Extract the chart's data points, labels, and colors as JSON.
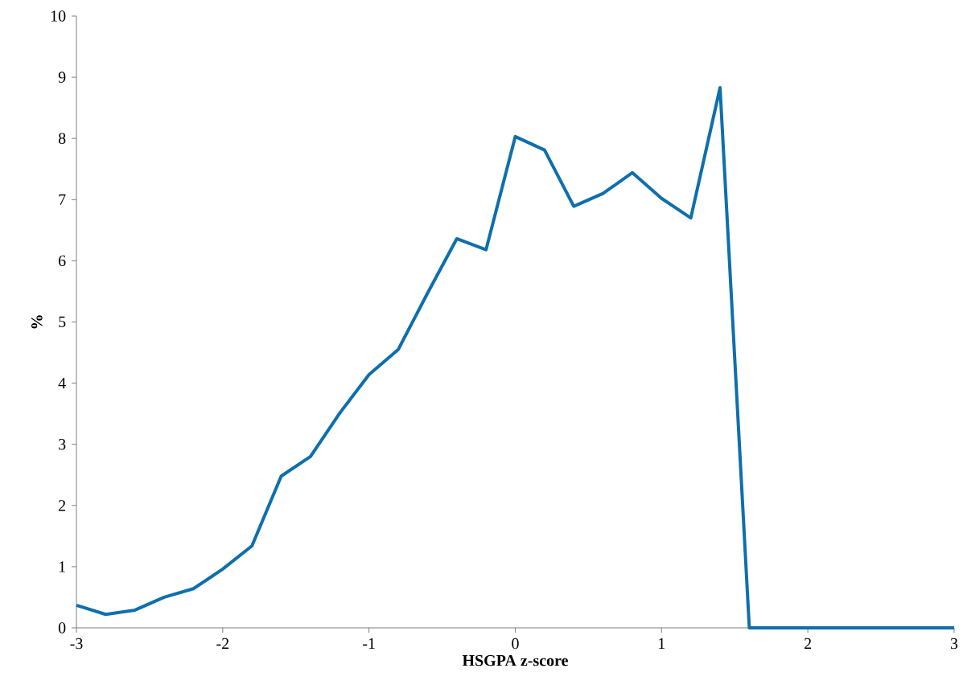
{
  "chart_data": {
    "type": "line",
    "xlabel": "HSGPA z-score",
    "ylabel": "%",
    "x": [
      -3,
      -2.8,
      -2.6,
      -2.4,
      -2.2,
      -2.0,
      -1.8,
      -1.6,
      -1.4,
      -1.2,
      -1.0,
      -0.8,
      -0.6,
      -0.4,
      -0.2,
      0,
      0.2,
      0.4,
      0.6,
      0.8,
      1.0,
      1.2,
      1.4,
      1.6,
      1.8,
      2.0,
      2.2,
      2.4,
      2.6,
      2.8,
      3.0
    ],
    "series": [
      {
        "color": "#0e6fad",
        "values": [
          0.37,
          0.22,
          0.29,
          0.5,
          0.64,
          0.96,
          1.34,
          2.48,
          2.8,
          3.51,
          4.14,
          4.55,
          5.47,
          6.36,
          6.18,
          8.03,
          7.81,
          6.89,
          7.1,
          7.44,
          7.02,
          6.7,
          8.83,
          0,
          0,
          0,
          0,
          0,
          0,
          0,
          0
        ]
      }
    ],
    "xlim": [
      -3,
      3
    ],
    "ylim": [
      0,
      10
    ],
    "xticks": [
      -3,
      -2,
      -1,
      0,
      1,
      2,
      3
    ],
    "yticks": [
      0,
      1,
      2,
      3,
      4,
      5,
      6,
      7,
      8,
      9,
      10
    ]
  }
}
